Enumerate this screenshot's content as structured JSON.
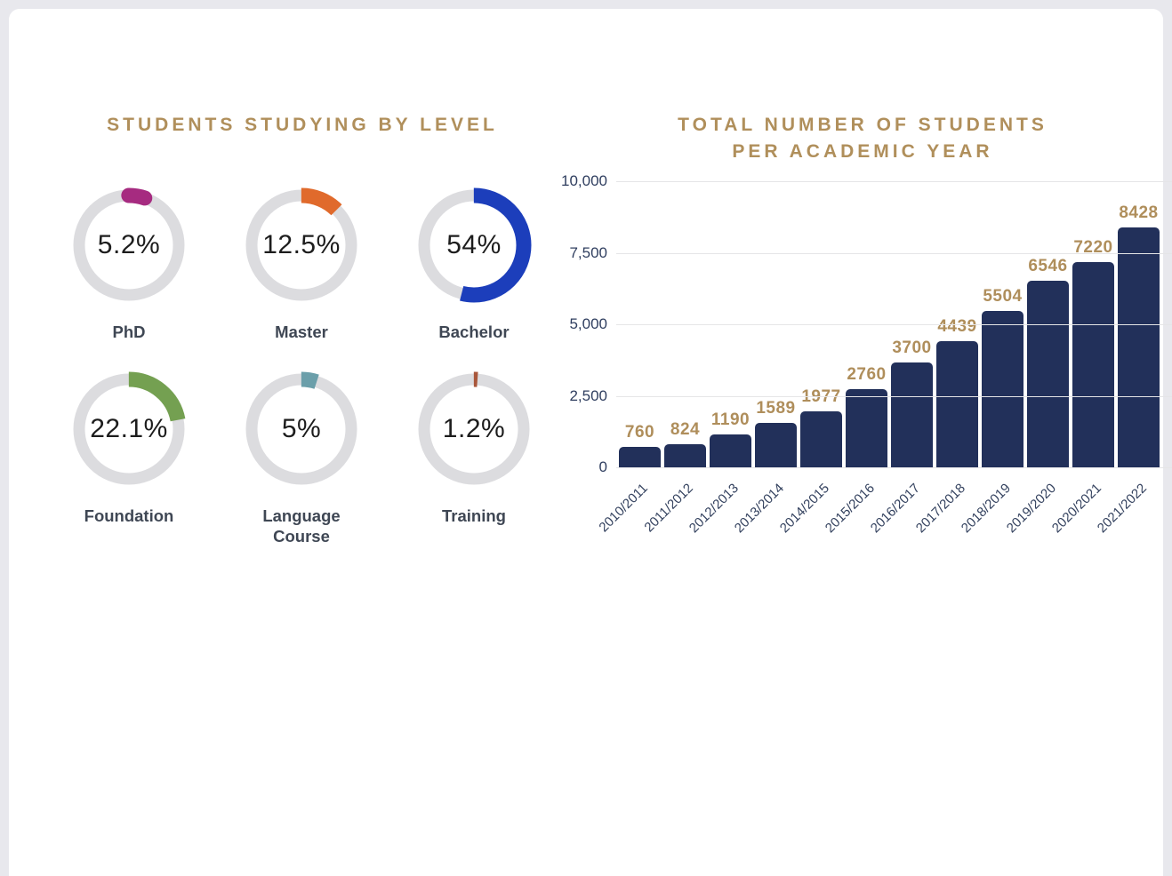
{
  "theme": {
    "page_background": "#e8e8ed",
    "card_background": "#ffffff",
    "gold": "#b08f5b",
    "navy": "#22305a",
    "axis_text": "#2f3e5f",
    "grid_color": "#e5e5e7",
    "donut_track": "#dcdcdf",
    "donut_label_color": "#3f4754",
    "donut_percent_color": "#1d1d1d"
  },
  "donut_section": {
    "title": "STUDENTS STUDYING BY LEVEL",
    "items": [
      {
        "label": "PhD",
        "percent_label": "5.2%",
        "percent": 5.2,
        "color": "#a62b80",
        "cap": "round"
      },
      {
        "label": "Master",
        "percent_label": "12.5%",
        "percent": 12.5,
        "color": "#e06a2c",
        "cap": "butt"
      },
      {
        "label": "Bachelor",
        "percent_label": "54%",
        "percent": 54,
        "color": "#1c3ebb",
        "cap": "butt"
      },
      {
        "label": "Foundation",
        "percent_label": "22.1%",
        "percent": 22.1,
        "color": "#74a051",
        "cap": "butt"
      },
      {
        "label": "Language Course",
        "percent_label": "5%",
        "percent": 5,
        "color": "#6b9faa",
        "cap": "butt"
      },
      {
        "label": "Training",
        "percent_label": "1.2%",
        "percent": 1.2,
        "color": "#a9573b",
        "cap": "butt"
      }
    ]
  },
  "bar_section": {
    "title_line1": "TOTAL NUMBER OF STUDENTS",
    "title_line2": "PER ACADEMIC YEAR",
    "ymax": 10000,
    "yticks": [
      {
        "label": "10,000",
        "value": 10000
      },
      {
        "label": "7,500",
        "value": 7500
      },
      {
        "label": "5,000",
        "value": 5000
      },
      {
        "label": "2,500",
        "value": 2500
      },
      {
        "label": "0",
        "value": 0
      }
    ],
    "bars": [
      {
        "year": "2010/2011",
        "value": 760
      },
      {
        "year": "2011/2012",
        "value": 824
      },
      {
        "year": "2012/2013",
        "value": 1190
      },
      {
        "year": "2013/2014",
        "value": 1589
      },
      {
        "year": "2014/2015",
        "value": 1977
      },
      {
        "year": "2015/2016",
        "value": 2760
      },
      {
        "year": "2016/2017",
        "value": 3700
      },
      {
        "year": "2017/2018",
        "value": 4439
      },
      {
        "year": "2018/2019",
        "value": 5504
      },
      {
        "year": "2019/2020",
        "value": 6546
      },
      {
        "year": "2020/2021",
        "value": 7220
      },
      {
        "year": "2021/2022",
        "value": 8428
      }
    ]
  },
  "chart_data": [
    {
      "type": "pie",
      "variant": "donut-small-multiples",
      "title": "STUDENTS STUDYING BY LEVEL",
      "categories": [
        "PhD",
        "Master",
        "Bachelor",
        "Foundation",
        "Language Course",
        "Training"
      ],
      "values": [
        5.2,
        12.5,
        54,
        22.1,
        5,
        1.2
      ],
      "unit": "%",
      "colors": [
        "#a62b80",
        "#e06a2c",
        "#1c3ebb",
        "#74a051",
        "#6b9faa",
        "#a9573b"
      ],
      "legend_position": "below-each-donut",
      "grid": false
    },
    {
      "type": "bar",
      "title": "TOTAL NUMBER OF STUDENTS PER ACADEMIC YEAR",
      "categories": [
        "2010/2011",
        "2011/2012",
        "2012/2013",
        "2013/2014",
        "2014/2015",
        "2015/2016",
        "2016/2017",
        "2017/2018",
        "2018/2019",
        "2019/2020",
        "2020/2021",
        "2021/2022"
      ],
      "values": [
        760,
        824,
        1190,
        1589,
        1977,
        2760,
        3700,
        4439,
        5504,
        6546,
        7220,
        8428
      ],
      "xlabel": "",
      "ylabel": "",
      "ylim": [
        0,
        10000
      ],
      "yticks": [
        0,
        2500,
        5000,
        7500,
        10000
      ],
      "grid": true,
      "legend_position": "none",
      "bar_color": "#22305a",
      "data_label_color": "#af8e5b"
    }
  ]
}
